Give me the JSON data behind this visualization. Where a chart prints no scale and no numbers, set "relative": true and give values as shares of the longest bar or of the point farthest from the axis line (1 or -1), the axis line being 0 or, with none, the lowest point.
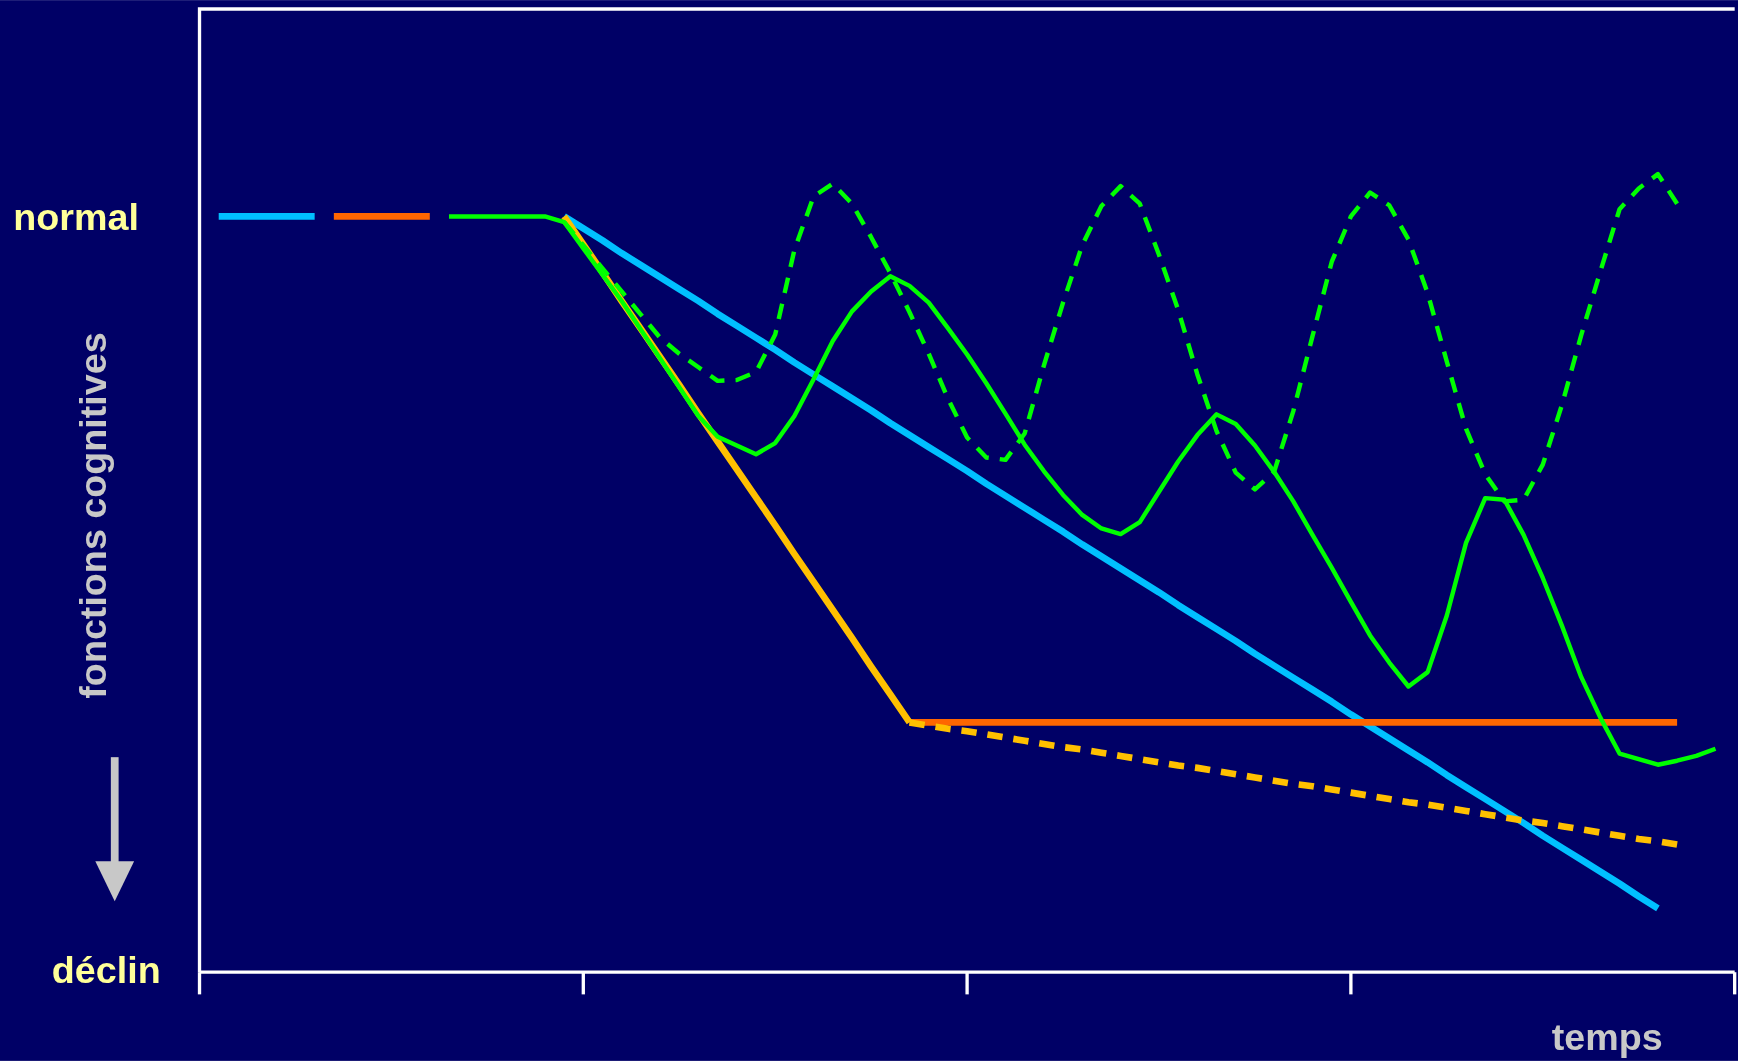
{
  "chart_data": {
    "type": "line",
    "relative": true,
    "xlabel": "temps",
    "ylabel": "fonctions cognitives",
    "annotations": [
      "normal",
      "déclin"
    ],
    "categories": [
      null,
      null,
      null,
      null,
      null,
      null,
      null,
      null,
      null,
      null,
      null,
      null,
      null,
      null,
      null,
      null,
      null,
      null,
      null,
      null,
      null,
      null,
      null,
      null,
      null,
      null,
      null,
      null,
      null,
      null,
      null,
      null,
      null,
      null,
      null,
      null,
      null,
      null,
      null,
      null,
      null,
      null,
      null,
      null,
      null,
      null,
      null,
      null,
      null,
      null,
      null,
      null,
      null,
      null,
      null,
      null,
      null,
      null,
      null,
      null,
      null,
      null,
      null,
      null,
      null,
      null,
      null,
      null,
      null,
      null,
      null,
      null,
      null,
      null,
      null,
      null,
      null,
      null,
      null,
      null,
      null
    ],
    "series": [
      {
        "color": "#00c0ff",
        "line_style": "solid",
        "values": [
          null,
          0.947,
          0.947,
          0.947,
          0.947,
          0.947,
          0.947,
          null,
          null,
          null,
          null,
          null,
          null,
          null,
          null,
          null,
          null,
          null,
          null,
          0.947,
          0.932,
          0.917,
          0.901,
          0.886,
          0.871,
          0.856,
          0.841,
          0.825,
          0.81,
          0.795,
          0.78,
          0.764,
          0.749,
          0.734,
          0.719,
          0.704,
          0.688,
          0.673,
          0.658,
          0.643,
          0.628,
          0.612,
          0.597,
          0.582,
          0.567,
          0.552,
          0.536,
          0.521,
          0.506,
          0.491,
          0.476,
          0.46,
          0.445,
          0.43,
          0.415,
          0.399,
          0.384,
          0.369,
          0.354,
          0.339,
          0.323,
          0.308,
          0.293,
          0.278,
          0.263,
          0.247,
          0.232,
          0.217,
          0.202,
          0.187,
          0.171,
          0.156,
          0.141,
          0.126,
          0.111,
          0.095,
          0.08,
          null,
          null,
          null,
          null
        ]
      },
      {
        "color": "#ff6600",
        "line_style": "solid",
        "values": [
          null,
          null,
          null,
          null,
          null,
          null,
          null,
          0.947,
          0.947,
          0.947,
          0.947,
          0.947,
          0.947,
          null,
          null,
          null,
          null,
          null,
          null,
          null,
          null,
          null,
          null,
          null,
          null,
          null,
          null,
          null,
          null,
          null,
          null,
          null,
          null,
          null,
          null,
          null,
          null,
          0.313,
          0.313,
          0.313,
          0.313,
          0.313,
          0.313,
          0.313,
          0.313,
          0.313,
          0.313,
          0.313,
          0.313,
          0.313,
          0.313,
          0.313,
          0.313,
          0.313,
          0.313,
          0.313,
          0.313,
          0.313,
          0.313,
          0.313,
          0.313,
          0.313,
          0.313,
          0.313,
          0.313,
          0.313,
          0.313,
          0.313,
          0.313,
          0.313,
          0.313,
          0.313,
          0.313,
          0.313,
          0.313,
          0.313,
          0.313,
          0.313,
          null,
          null,
          null
        ]
      },
      {
        "color": "#ffc000",
        "line_style": "solid",
        "values": [
          null,
          null,
          null,
          null,
          null,
          null,
          null,
          null,
          null,
          null,
          null,
          null,
          null,
          null,
          null,
          null,
          null,
          null,
          null,
          0.947,
          0.912,
          0.877,
          0.841,
          0.806,
          0.771,
          0.736,
          0.7,
          0.665,
          0.63,
          0.595,
          0.56,
          0.524,
          0.489,
          0.454,
          0.419,
          0.383,
          0.348,
          0.313,
          null,
          null,
          null,
          null,
          null,
          null,
          null,
          null,
          null,
          null,
          null,
          null,
          null,
          null,
          null,
          null,
          null,
          null,
          null,
          null,
          null,
          null,
          null,
          null,
          null,
          null,
          null,
          null,
          null,
          null,
          null,
          null,
          null,
          null,
          null,
          null,
          null,
          null,
          null,
          null,
          null,
          null,
          null
        ]
      },
      {
        "color": "#ffc000",
        "line_style": "dashed",
        "values": [
          null,
          null,
          null,
          null,
          null,
          null,
          null,
          null,
          null,
          null,
          null,
          null,
          null,
          null,
          null,
          null,
          null,
          null,
          null,
          null,
          null,
          null,
          null,
          null,
          null,
          null,
          null,
          null,
          null,
          null,
          null,
          null,
          null,
          null,
          null,
          null,
          null,
          0.313,
          0.309,
          0.305,
          0.302,
          0.298,
          0.294,
          0.29,
          0.286,
          0.282,
          0.279,
          0.275,
          0.271,
          0.267,
          0.263,
          0.259,
          0.256,
          0.252,
          0.248,
          0.244,
          0.24,
          0.236,
          0.233,
          0.229,
          0.225,
          0.221,
          0.217,
          0.213,
          0.21,
          0.206,
          0.202,
          0.198,
          0.194,
          0.19,
          0.187,
          0.183,
          0.179,
          0.175,
          0.171,
          0.167,
          0.164,
          0.16,
          null,
          null,
          null
        ]
      },
      {
        "color": "#00ff00",
        "line_style": "solid",
        "values": [
          null,
          null,
          null,
          null,
          null,
          null,
          null,
          null,
          null,
          null,
          null,
          null,
          null,
          0.947,
          0.947,
          0.947,
          0.947,
          0.947,
          0.947,
          0.94,
          0.907,
          0.874,
          0.841,
          0.805,
          0.769,
          0.733,
          0.697,
          0.671,
          0.66,
          0.649,
          0.663,
          0.697,
          0.743,
          0.791,
          0.828,
          0.853,
          0.872,
          0.86,
          0.839,
          0.807,
          0.774,
          0.738,
          0.7,
          0.661,
          0.628,
          0.598,
          0.573,
          0.556,
          0.549,
          0.564,
          0.602,
          0.64,
          0.673,
          0.699,
          0.687,
          0.66,
          0.627,
          0.59,
          0.548,
          0.507,
          0.464,
          0.422,
          0.388,
          0.358,
          0.376,
          0.447,
          0.538,
          0.594,
          0.592,
          0.548,
          0.494,
          0.434,
          0.37,
          0.319,
          0.274,
          0.267,
          0.26,
          0.265,
          0.271,
          0.28,
          null
        ]
      },
      {
        "color": "#00ff00",
        "line_style": "dashed",
        "values": [
          null,
          null,
          null,
          null,
          null,
          null,
          null,
          null,
          null,
          null,
          null,
          null,
          null,
          null,
          null,
          null,
          null,
          null,
          null,
          0.94,
          0.911,
          0.882,
          0.853,
          0.824,
          0.795,
          0.775,
          0.758,
          0.741,
          0.742,
          0.752,
          0.799,
          0.905,
          0.972,
          0.988,
          0.963,
          0.921,
          0.876,
          0.827,
          0.775,
          0.719,
          0.67,
          0.645,
          0.642,
          0.675,
          0.76,
          0.839,
          0.911,
          0.96,
          0.985,
          0.963,
          0.899,
          0.83,
          0.749,
          0.678,
          0.626,
          0.605,
          0.627,
          0.703,
          0.797,
          0.89,
          0.947,
          0.977,
          0.961,
          0.918,
          0.851,
          0.765,
          0.681,
          0.624,
          0.59,
          0.592,
          0.636,
          0.711,
          0.798,
          0.878,
          0.956,
          0.982,
          1,
          0.963,
          null,
          null,
          null
        ]
      }
    ]
  }
}
